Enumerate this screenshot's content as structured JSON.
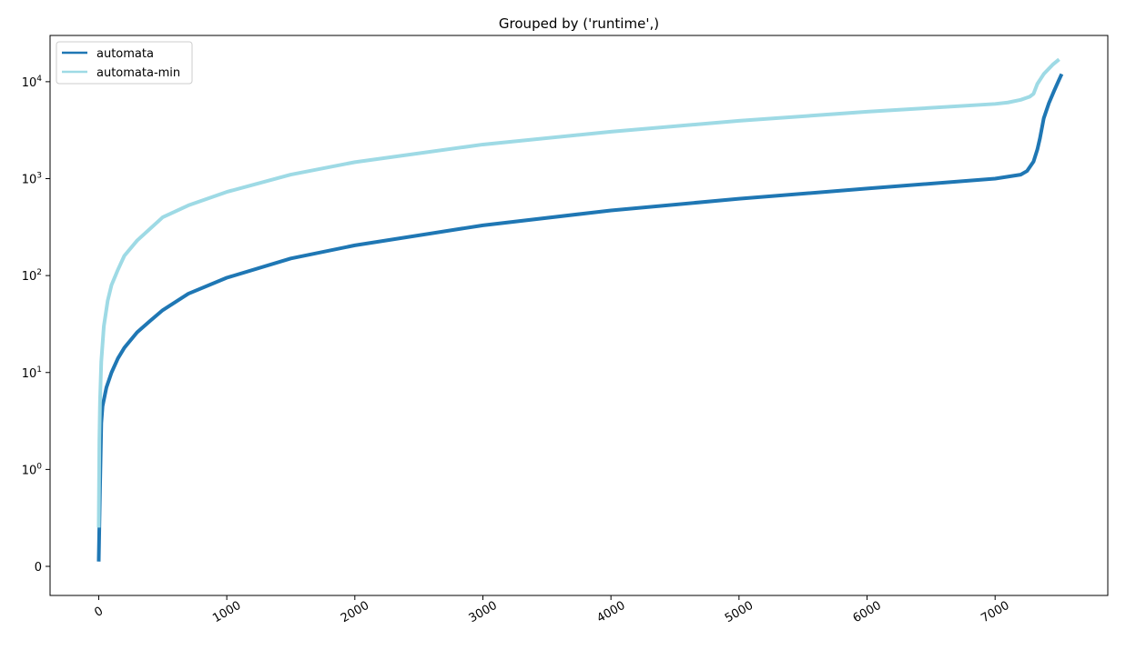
{
  "chart_data": {
    "type": "line",
    "title": "Grouped by ('runtime',)",
    "xlabel": "",
    "ylabel": "",
    "y_scale": "symlog",
    "xlim": [
      -380,
      7880
    ],
    "ylim": [
      -0.3,
      30000
    ],
    "grid": false,
    "legend_position": "top-left",
    "x_ticks": [
      0,
      1000,
      2000,
      3000,
      4000,
      5000,
      6000,
      7000
    ],
    "y_ticks": [
      {
        "value": 0,
        "base": "0",
        "exp": ""
      },
      {
        "value": 1,
        "base": "10",
        "exp": "0"
      },
      {
        "value": 10,
        "base": "10",
        "exp": "1"
      },
      {
        "value": 100,
        "base": "10",
        "exp": "2"
      },
      {
        "value": 1000,
        "base": "10",
        "exp": "3"
      },
      {
        "value": 10000,
        "base": "10",
        "exp": "4"
      }
    ],
    "series": [
      {
        "name": "automata",
        "color": "#1f77b4",
        "x": [
          0,
          10,
          20,
          30,
          60,
          100,
          150,
          200,
          300,
          400,
          500,
          700,
          1000,
          1500,
          2000,
          3000,
          4000,
          5000,
          6000,
          7000,
          7200,
          7250,
          7300,
          7330,
          7350,
          7380,
          7420,
          7460,
          7500,
          7520
        ],
        "y": [
          0.05,
          0.8,
          3,
          4.5,
          7,
          10,
          14,
          18,
          26,
          34,
          44,
          65,
          95,
          150,
          205,
          330,
          470,
          620,
          790,
          1000,
          1100,
          1200,
          1500,
          2000,
          2600,
          4200,
          6000,
          8000,
          10500,
          12000
        ]
      },
      {
        "name": "automata-min",
        "color": "#9edae5",
        "x": [
          0,
          5,
          10,
          20,
          40,
          70,
          100,
          150,
          200,
          300,
          500,
          700,
          1000,
          1500,
          2000,
          3000,
          4000,
          5000,
          6000,
          7000,
          7100,
          7200,
          7270,
          7300,
          7330,
          7380,
          7450,
          7500
        ],
        "y": [
          0.4,
          2,
          5,
          13,
          30,
          55,
          80,
          115,
          160,
          230,
          400,
          530,
          730,
          1100,
          1480,
          2250,
          3050,
          3950,
          4900,
          5900,
          6100,
          6500,
          7000,
          7500,
          9500,
          12000,
          15000,
          17000
        ]
      }
    ]
  }
}
